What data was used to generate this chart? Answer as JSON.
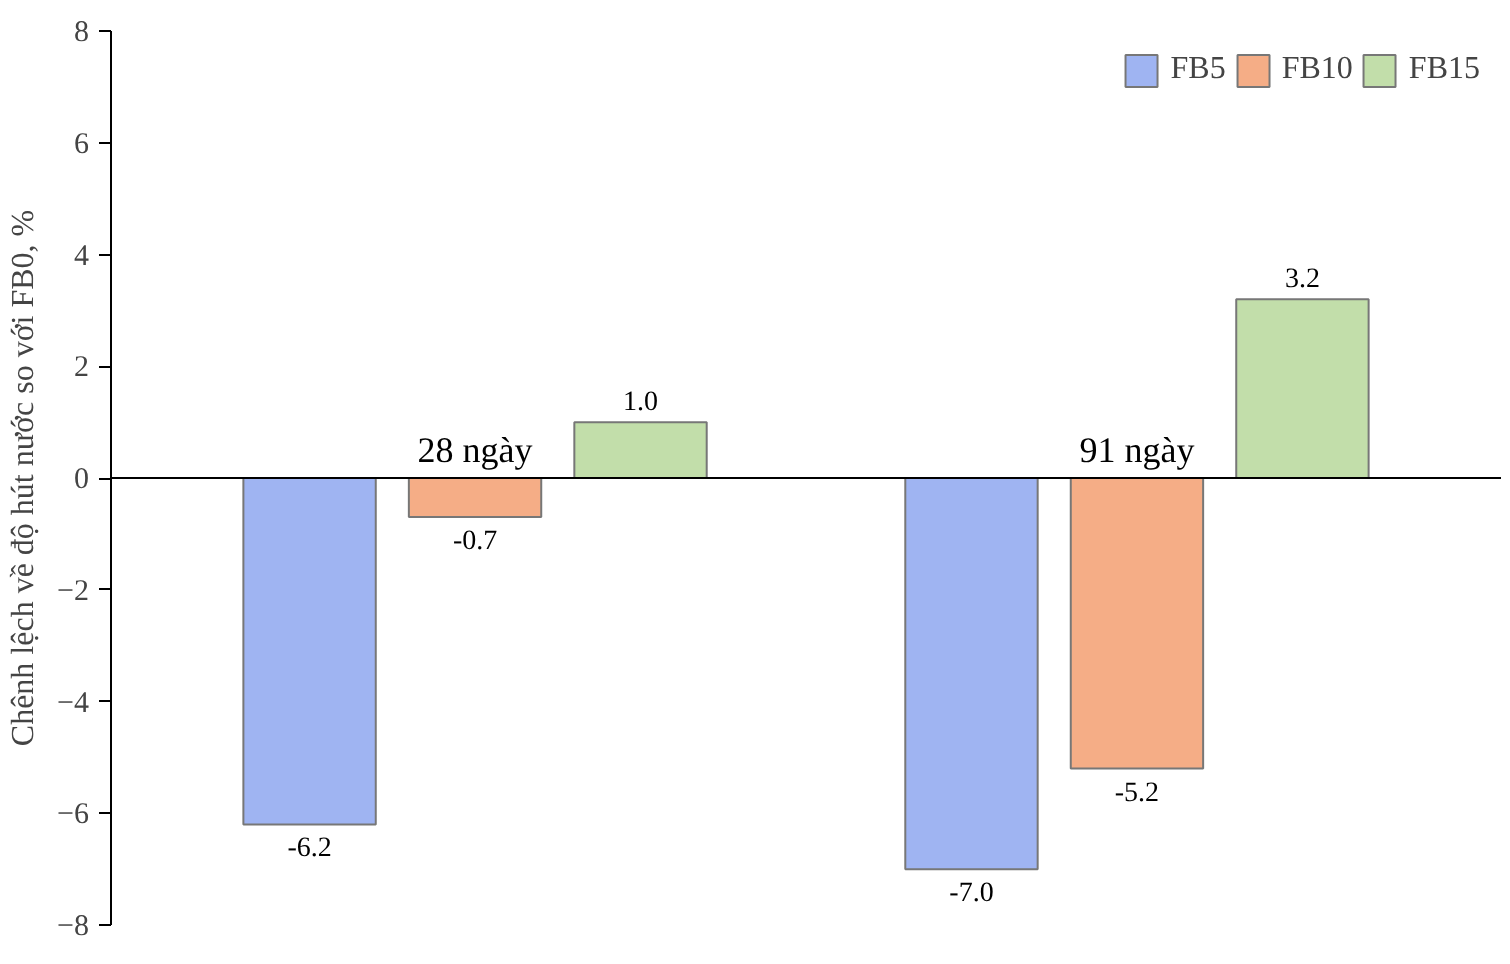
{
  "chart_data": {
    "type": "bar",
    "ylabel": "Chênh lệch về độ hút nước so với FB0, %",
    "categories": [
      "28 ngày",
      "91 ngày"
    ],
    "series": [
      {
        "name": "FB5",
        "color": "#9fb4f2",
        "values": [
          -6.2,
          -7.0
        ],
        "value_labels": [
          "-6.2",
          "-7.0"
        ]
      },
      {
        "name": "FB10",
        "color": "#f5ad86",
        "values": [
          -0.7,
          -5.2
        ],
        "value_labels": [
          "-0.7",
          "-5.2"
        ]
      },
      {
        "name": "FB15",
        "color": "#c2deaa",
        "values": [
          1.0,
          3.2
        ],
        "value_labels": [
          "1.0",
          "3.2"
        ]
      }
    ],
    "ylim": [
      -8,
      8
    ],
    "yticks": [
      -8,
      -6,
      -4,
      -2,
      0,
      2,
      4,
      6,
      8
    ],
    "grid": false,
    "legend": "top right"
  }
}
